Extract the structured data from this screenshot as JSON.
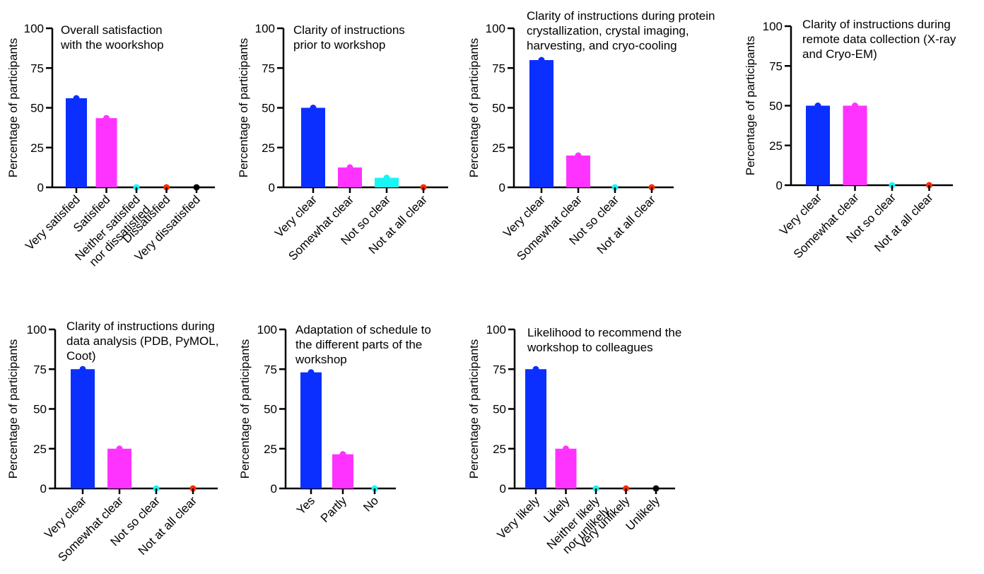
{
  "colors": {
    "blue": "#0a2fff",
    "magenta": "#ff33ff",
    "cyan": "#19f5f5",
    "red": "#ff2a00",
    "black": "#000000"
  },
  "chart_data": [
    {
      "type": "bar",
      "title": [
        "Overall satisfaction",
        "with the woorkshop"
      ],
      "ylabel": "Percentage of participants",
      "ylim": [
        0,
        100
      ],
      "yticks": [
        "0",
        "25",
        "50",
        "75",
        "100"
      ],
      "categories": [
        [
          "Very satisfied"
        ],
        [
          "Satisfied"
        ],
        [
          "Neither satisfied",
          "nor dissatisfied"
        ],
        [
          "Dissatisfied"
        ],
        [
          "Very dissatisfied"
        ]
      ],
      "values": [
        56,
        43.5,
        0,
        0,
        0
      ],
      "bar_colors": [
        "blue",
        "magenta",
        "cyan",
        "red",
        "black"
      ],
      "grid": false
    },
    {
      "type": "bar",
      "title": [
        "Clarity of instructions",
        "prior to workshop"
      ],
      "ylabel": "Percentage of participants",
      "ylim": [
        0,
        100
      ],
      "yticks": [
        "0",
        "25",
        "50",
        "75",
        "100"
      ],
      "categories": [
        [
          "Very clear"
        ],
        [
          "Somewhat clear"
        ],
        [
          "Not so clear"
        ],
        [
          "Not at all clear"
        ]
      ],
      "values": [
        50,
        12.5,
        6,
        0
      ],
      "bar_colors": [
        "blue",
        "magenta",
        "cyan",
        "red"
      ],
      "grid": false
    },
    {
      "type": "bar",
      "title": [
        "Clarity of instructions during protein",
        "crystallization, crystal imaging,",
        "harvesting, and cryo-cooling"
      ],
      "ylabel": "Percentage of participants",
      "ylim": [
        0,
        100
      ],
      "yticks": [
        "0",
        "25",
        "50",
        "75",
        "100"
      ],
      "categories": [
        [
          "Very clear"
        ],
        [
          "Somewhat clear"
        ],
        [
          "Not so clear"
        ],
        [
          "Not at all clear"
        ]
      ],
      "values": [
        80,
        20,
        0,
        0
      ],
      "bar_colors": [
        "blue",
        "magenta",
        "cyan",
        "red"
      ],
      "grid": false
    },
    {
      "type": "bar",
      "title": [
        "Clarity of instructions during",
        "remote data collection (X-ray",
        "and Cryo-EM)"
      ],
      "ylabel": "Percentage of participants",
      "ylim": [
        0,
        100
      ],
      "yticks": [
        "0",
        "25",
        "50",
        "75",
        "100"
      ],
      "categories": [
        [
          "Very clear"
        ],
        [
          "Somewhat clear"
        ],
        [
          "Not so clear"
        ],
        [
          "Not at all clear"
        ]
      ],
      "values": [
        50,
        50,
        0,
        0
      ],
      "bar_colors": [
        "blue",
        "magenta",
        "cyan",
        "red"
      ],
      "grid": false
    },
    {
      "type": "bar",
      "title": [
        "Clarity of instructions during",
        "data analysis (PDB, PyMOL,",
        " Coot)"
      ],
      "ylabel": "Percentage of participants",
      "ylim": [
        0,
        100
      ],
      "yticks": [
        "0",
        "25",
        "50",
        "75",
        "100"
      ],
      "categories": [
        [
          "Very clear"
        ],
        [
          "Somewhat clear"
        ],
        [
          "Not so clear"
        ],
        [
          "Not at all clear"
        ]
      ],
      "values": [
        75,
        25,
        0,
        0
      ],
      "bar_colors": [
        "blue",
        "magenta",
        "cyan",
        "red"
      ],
      "grid": false
    },
    {
      "type": "bar",
      "title": [
        "Adaptation of schedule to",
        "the different parts of the",
        "workshop"
      ],
      "ylabel": "Percentage of participants",
      "ylim": [
        0,
        100
      ],
      "yticks": [
        "0",
        "25",
        "50",
        "75",
        "100"
      ],
      "categories": [
        [
          "Yes"
        ],
        [
          "Partly"
        ],
        [
          "No"
        ]
      ],
      "values": [
        73,
        21.5,
        0
      ],
      "bar_colors": [
        "blue",
        "magenta",
        "cyan"
      ],
      "grid": false
    },
    {
      "type": "bar",
      "title": [
        "Likelihood to recommend the",
        "workshop to colleagues"
      ],
      "ylabel": "Percentage of participants",
      "ylim": [
        0,
        100
      ],
      "yticks": [
        "0",
        "25",
        "50",
        "75",
        "100"
      ],
      "categories": [
        [
          "Very likely"
        ],
        [
          "Likely"
        ],
        [
          "Neither likely",
          "nor unlikely"
        ],
        [
          "Very unlikely"
        ],
        [
          "Unlikely"
        ]
      ],
      "values": [
        75,
        25,
        0,
        0,
        0
      ],
      "bar_colors": [
        "blue",
        "magenta",
        "cyan",
        "red",
        "black"
      ],
      "grid": false
    }
  ]
}
